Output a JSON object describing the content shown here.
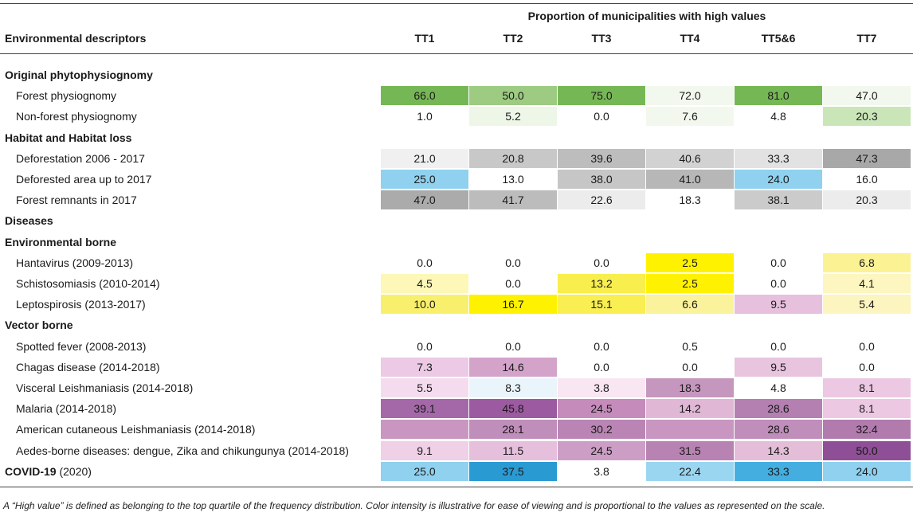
{
  "header": {
    "descriptor_label": "Environmental descriptors",
    "proportion_label": "Proportion of municipalities with high values",
    "columns": [
      "TT1",
      "TT2",
      "TT3",
      "TT4",
      "TT5&6",
      "TT7"
    ]
  },
  "rows": [
    {
      "type": "section",
      "label": "Original phytophysiognomy"
    },
    {
      "type": "item",
      "label": "Forest physiognomy",
      "values": [
        "66.0",
        "50.0",
        "75.0",
        "72.0",
        "81.0",
        "47.0"
      ],
      "colors": [
        "#76b755",
        "#9dcb82",
        "#76b755",
        "#f3f8ef",
        "#76b755",
        "#f3f8ef"
      ]
    },
    {
      "type": "item",
      "label": "Non-forest physiognomy",
      "values": [
        "1.0",
        "5.2",
        "0.0",
        "7.6",
        "4.8",
        "20.3"
      ],
      "colors": [
        "",
        "#eef6e8",
        "",
        "#f3f8ef",
        "",
        "#cae6b8"
      ]
    },
    {
      "type": "section",
      "label": "Habitat and Habitat loss"
    },
    {
      "type": "item",
      "label": "Deforestation 2006 - 2017",
      "values": [
        "21.0",
        "20.8",
        "39.6",
        "40.6",
        "33.3",
        "47.3"
      ],
      "colors": [
        "#f0f0f0",
        "#c8c8c8",
        "#bdbdbd",
        "#d2d2d2",
        "#e2e2e2",
        "#a8a8a8"
      ]
    },
    {
      "type": "item",
      "label": "Deforested area up to 2017",
      "values": [
        "25.0",
        "13.0",
        "38.0",
        "41.0",
        "24.0",
        "16.0"
      ],
      "colors": [
        "#8fd1ef",
        "",
        "#c6c6c6",
        "#b7b7b7",
        "#8fd1ef",
        ""
      ]
    },
    {
      "type": "item",
      "label": "Forest remnants in 2017",
      "values": [
        "47.0",
        "41.7",
        "22.6",
        "18.3",
        "38.1",
        "20.3"
      ],
      "colors": [
        "#ababab",
        "#bcbcbc",
        "#ececec",
        "",
        "#cbcbcb",
        "#ececec"
      ]
    },
    {
      "type": "section",
      "label": "Diseases"
    },
    {
      "type": "section",
      "label": "Environmental borne"
    },
    {
      "type": "item",
      "label": "Hantavirus (2009-2013)",
      "values": [
        "0.0",
        "0.0",
        "0.0",
        "2.5",
        "0.0",
        "6.8"
      ],
      "colors": [
        "",
        "",
        "",
        "#fff200",
        "",
        "#fbf294"
      ]
    },
    {
      "type": "item",
      "label": "Schistosomiasis (2010-2014)",
      "values": [
        "4.5",
        "0.0",
        "13.2",
        "2.5",
        "0.0",
        "4.1"
      ],
      "colors": [
        "#fdf7b8",
        "",
        "#f8ee4e",
        "#fff200",
        "",
        "#fdf6c0"
      ]
    },
    {
      "type": "item",
      "label": "Leptospirosis (2013-2017)",
      "values": [
        "10.0",
        "16.7",
        "15.1",
        "6.6",
        "9.5",
        "5.4"
      ],
      "colors": [
        "#f8f06c",
        "#fff200",
        "#f9ee52",
        "#fbf39b",
        "#e6c0dc",
        "#fdf5c0"
      ]
    },
    {
      "type": "section",
      "label": "Vector borne"
    },
    {
      "type": "item",
      "label": "Spotted fever (2008-2013)",
      "values": [
        "0.0",
        "0.0",
        "0.0",
        "0.5",
        "0.0",
        "0.0"
      ],
      "colors": [
        "",
        "",
        "",
        "",
        "",
        ""
      ]
    },
    {
      "type": "item",
      "label": "Chagas disease (2014-2018)",
      "values": [
        "7.3",
        "14.6",
        "0.0",
        "0.0",
        "9.5",
        "0.0"
      ],
      "colors": [
        "#ecc9e4",
        "#d4a3ca",
        "",
        "",
        "#e8c4de",
        ""
      ]
    },
    {
      "type": "item",
      "label": "Visceral Leishmaniasis (2014-2018)",
      "values": [
        "5.5",
        "8.3",
        "3.8",
        "18.3",
        "4.8",
        "8.1"
      ],
      "colors": [
        "#f4dcee",
        "#eaf5fb",
        "#f8e6f2",
        "#c697be",
        "",
        "#ecc8e2"
      ]
    },
    {
      "type": "item",
      "label": "Malaria (2014-2018)",
      "values": [
        "39.1",
        "45.8",
        "24.5",
        "14.2",
        "28.6",
        "8.1"
      ],
      "colors": [
        "#a468a8",
        "#9c5aa0",
        "#c48bbb",
        "#e0b8d6",
        "#b47fb1",
        "#ecc8e2"
      ]
    },
    {
      "type": "item",
      "label": "American cutaneous Leishmaniasis (2014-2018)",
      "values": [
        "",
        "28.1",
        "30.2",
        "",
        "28.6",
        "32.4"
      ],
      "colors": [
        "#c996c1",
        "#c08ebb",
        "#ba85b4",
        "#c996c1",
        "#c08ebb",
        "#b27bae"
      ]
    },
    {
      "type": "item",
      "label": "Aedes-borne diseases: dengue, Zika and chikungunya (2014-2018)",
      "values": [
        "9.1",
        "11.5",
        "24.5",
        "31.5",
        "14.3",
        "50.0"
      ],
      "colors": [
        "#efd0e6",
        "#e6bfdc",
        "#cc9ec6",
        "#b883b2",
        "#e4bed8",
        "#8e4f96"
      ]
    },
    {
      "type": "section",
      "label": "COVID-19",
      "label_suffix": " (2020)",
      "values": [
        "25.0",
        "37.5",
        "3.8",
        "22.4",
        "33.3",
        "24.0"
      ],
      "colors": [
        "#8fd1ef",
        "#2a9ad3",
        "",
        "#9bd6f1",
        "#45aee0",
        "#8fd1ef"
      ]
    }
  ],
  "note": "A “High value” is defined as belonging to the top quartile of the frequency distribution. Color intensity is illustrative for ease of viewing and is proportional to the values as represented on the scale."
}
